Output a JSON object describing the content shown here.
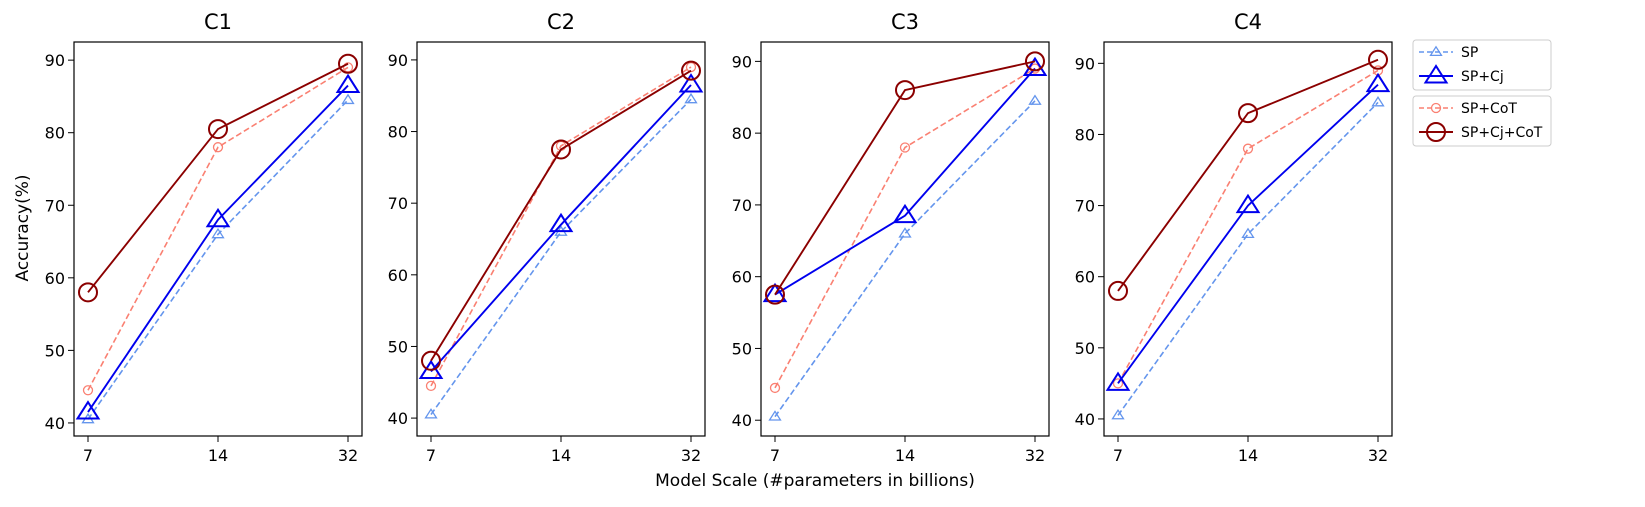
{
  "figure": {
    "shared_xlabel": "Model Scale (#parameters in billions)",
    "shared_ylabel": "Accuracy(%)"
  },
  "legend": {
    "placement": "right",
    "groups": [
      [
        "SP",
        "SP+Cj"
      ],
      [
        "SP+CoT",
        "SP+Cj+CoT"
      ]
    ]
  },
  "series_styles": {
    "SP": {
      "color": "#6495ED",
      "marker": "triangle",
      "marker_size": "small",
      "dashed": true
    },
    "SP+Cj": {
      "color": "#0000EE",
      "marker": "triangle",
      "marker_size": "large",
      "dashed": false
    },
    "SP+CoT": {
      "color": "#FA8072",
      "marker": "circle",
      "marker_size": "small",
      "dashed": true
    },
    "SP+Cj+CoT": {
      "color": "#8B0000",
      "marker": "circle",
      "marker_size": "large",
      "dashed": false
    }
  },
  "chart_data": [
    {
      "type": "line",
      "title": "C1",
      "xlabel": "",
      "ylabel": "Accuracy(%)",
      "x": [
        7,
        14,
        32
      ],
      "x_ticks": [
        "7",
        "14",
        "32"
      ],
      "y_ticks": [
        40,
        50,
        60,
        70,
        80,
        90
      ],
      "ylim": [
        38.2,
        92.5
      ],
      "grid": false,
      "series": [
        {
          "name": "SP",
          "values": [
            40.5,
            66,
            84.5
          ]
        },
        {
          "name": "SP+Cj",
          "values": [
            41.5,
            68,
            86.5
          ]
        },
        {
          "name": "SP+CoT",
          "values": [
            44.5,
            78,
            89
          ]
        },
        {
          "name": "SP+Cj+CoT",
          "values": [
            58,
            80.5,
            89.5
          ]
        }
      ]
    },
    {
      "type": "line",
      "title": "C2",
      "xlabel": "",
      "ylabel": "",
      "x": [
        7,
        14,
        32
      ],
      "x_ticks": [
        "7",
        "14",
        "32"
      ],
      "y_ticks": [
        40,
        50,
        60,
        70,
        80,
        90
      ],
      "ylim": [
        37.5,
        92.5
      ],
      "grid": false,
      "series": [
        {
          "name": "SP",
          "values": [
            40.5,
            66,
            84.5
          ]
        },
        {
          "name": "SP+Cj",
          "values": [
            46.5,
            67,
            86.5
          ]
        },
        {
          "name": "SP+CoT",
          "values": [
            44.5,
            78,
            89
          ]
        },
        {
          "name": "SP+Cj+CoT",
          "values": [
            48,
            77.5,
            88.5
          ]
        }
      ]
    },
    {
      "type": "line",
      "title": "C3",
      "xlabel": "Model Scale (#parameters in billions)",
      "ylabel": "",
      "x": [
        7,
        14,
        32
      ],
      "x_ticks": [
        "7",
        "14",
        "32"
      ],
      "y_ticks": [
        40,
        50,
        60,
        70,
        80,
        90
      ],
      "ylim": [
        37.8,
        92.7
      ],
      "grid": false,
      "series": [
        {
          "name": "SP",
          "values": [
            40.5,
            66,
            84.5
          ]
        },
        {
          "name": "SP+Cj",
          "values": [
            57.5,
            68.5,
            89
          ]
        },
        {
          "name": "SP+CoT",
          "values": [
            44.5,
            78,
            89
          ]
        },
        {
          "name": "SP+Cj+CoT",
          "values": [
            57.5,
            86,
            90
          ]
        }
      ]
    },
    {
      "type": "line",
      "title": "C4",
      "xlabel": "",
      "ylabel": "",
      "x": [
        7,
        14,
        32
      ],
      "x_ticks": [
        "7",
        "14",
        "32"
      ],
      "y_ticks": [
        40,
        50,
        60,
        70,
        80,
        90
      ],
      "ylim": [
        37.6,
        93.0
      ],
      "grid": false,
      "series": [
        {
          "name": "SP",
          "values": [
            40.5,
            66,
            84.5
          ]
        },
        {
          "name": "SP+Cj",
          "values": [
            45,
            70,
            87
          ]
        },
        {
          "name": "SP+CoT",
          "values": [
            45,
            78,
            89
          ]
        },
        {
          "name": "SP+Cj+CoT",
          "values": [
            58,
            83,
            90.5
          ]
        }
      ]
    }
  ]
}
